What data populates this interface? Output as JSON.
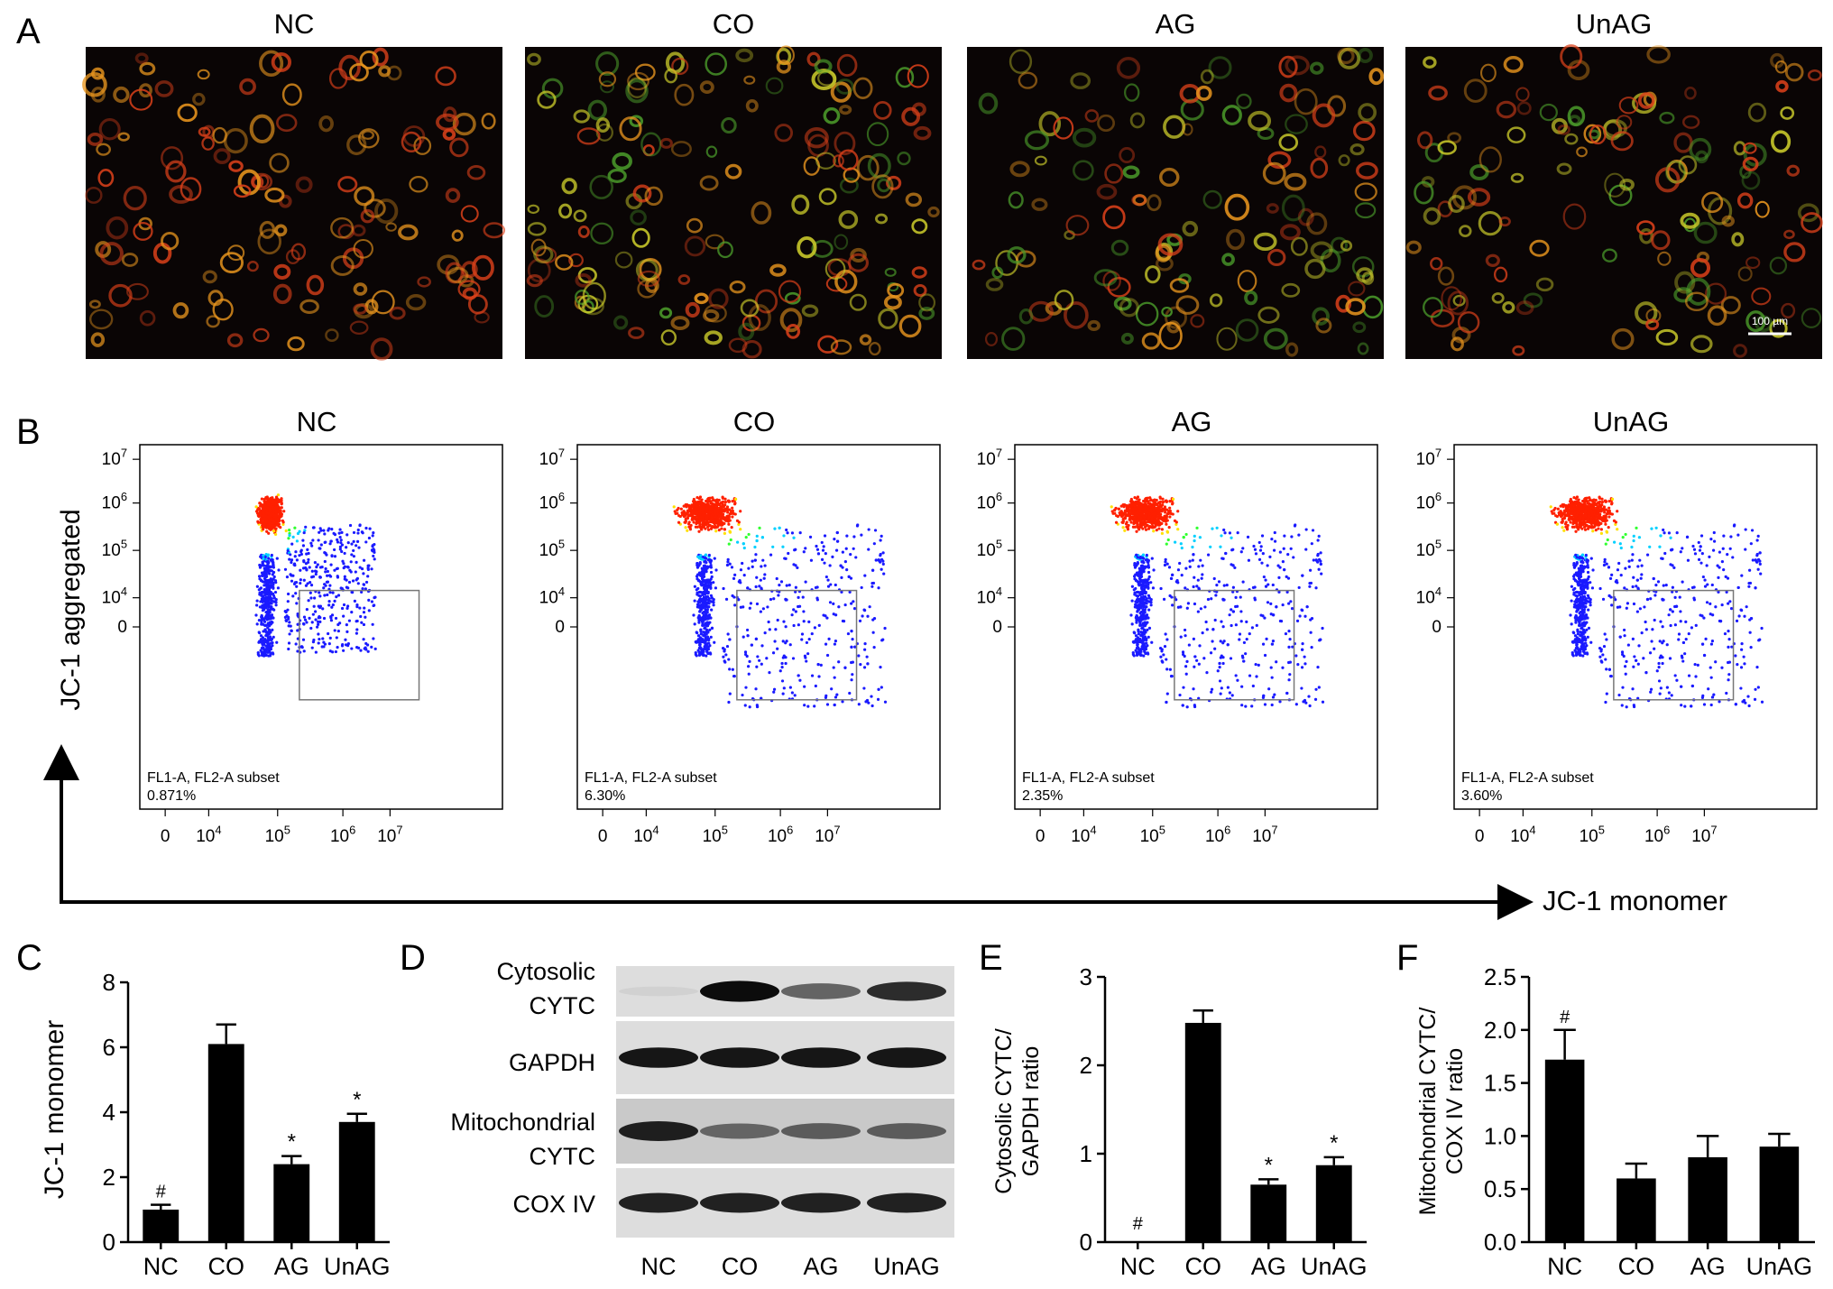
{
  "panel_letters": [
    "A",
    "B",
    "C",
    "D",
    "E",
    "F"
  ],
  "groups": [
    "NC",
    "CO",
    "AG",
    "UnAG"
  ],
  "panel_a": {
    "titles": [
      "NC",
      "CO",
      "AG",
      "UnAG"
    ],
    "scale_bar_label": "100 µm",
    "colors": {
      "background": "#0a0505",
      "red": "#d9401a",
      "orange": "#e8951e",
      "yellow": "#c8c82a",
      "green": "#4a9a2a"
    }
  },
  "panel_b": {
    "titles": [
      "NC",
      "CO",
      "AG",
      "UnAG"
    ],
    "y_axis_label": "JC-1 aggregated",
    "x_axis_label": "JC-1 monomer",
    "gate_label": "FL1-A, FL2-A subset",
    "gate_percent": [
      "0.871%",
      "6.30%",
      "2.35%",
      "3.60%"
    ],
    "x_ticks": [
      "0",
      "10^4",
      "10^5",
      "10^6",
      "10^7"
    ],
    "y_ticks": [
      "10^7",
      "10^6",
      "10^5",
      "10^4",
      "0"
    ],
    "colors": {
      "low": "#1a1aff",
      "mid": "#00d0ff",
      "hi": "#30ff30",
      "top": "#ffe000",
      "max": "#ff2000"
    }
  },
  "panel_d": {
    "rows": [
      {
        "label_lines": [
          "Cytosolic",
          "CYTC"
        ],
        "intensity": [
          0.05,
          0.95,
          0.55,
          0.8
        ]
      },
      {
        "label_lines": [
          "GAPDH"
        ],
        "intensity": [
          0.9,
          0.9,
          0.9,
          0.9
        ]
      },
      {
        "label_lines": [
          "Mitochondrial",
          "CYTC"
        ],
        "intensity": [
          0.85,
          0.5,
          0.55,
          0.55
        ]
      },
      {
        "label_lines": [
          "COX IV"
        ],
        "intensity": [
          0.85,
          0.85,
          0.85,
          0.85
        ]
      }
    ],
    "lanes": [
      "NC",
      "CO",
      "AG",
      "UnAG"
    ]
  },
  "chart_data": [
    {
      "panel": "C",
      "type": "bar",
      "categories": [
        "NC",
        "CO",
        "AG",
        "UnAG"
      ],
      "values": [
        1.0,
        6.1,
        2.4,
        3.7
      ],
      "errors": [
        0.15,
        0.6,
        0.25,
        0.25
      ],
      "annotations": [
        "#",
        "",
        "*",
        "*"
      ],
      "ylabel": "JC-1 monomer",
      "ylim": [
        0,
        8
      ],
      "yticks": [
        0,
        2,
        4,
        6,
        8
      ]
    },
    {
      "panel": "E",
      "type": "bar",
      "categories": [
        "NC",
        "CO",
        "AG",
        "UnAG"
      ],
      "values": [
        0.0,
        2.48,
        0.65,
        0.87
      ],
      "errors": [
        0.0,
        0.14,
        0.06,
        0.09
      ],
      "annotations": [
        "#",
        "",
        "*",
        "*"
      ],
      "ylabel_lines": [
        "Cytosolic CYTC/",
        "GAPDH ratio"
      ],
      "ylim": [
        0,
        3
      ],
      "yticks": [
        0,
        1,
        2,
        3
      ]
    },
    {
      "panel": "F",
      "type": "bar",
      "categories": [
        "NC",
        "CO",
        "AG",
        "UnAG"
      ],
      "values": [
        1.72,
        0.6,
        0.8,
        0.9
      ],
      "errors": [
        0.28,
        0.14,
        0.2,
        0.12
      ],
      "annotations": [
        "#",
        "",
        "",
        ""
      ],
      "ylabel_lines": [
        "Mitochondrial CYTC/",
        "COX IV ratio"
      ],
      "ylim": [
        0,
        2.5
      ],
      "yticks": [
        "0.0",
        "0.5",
        "1.0",
        "1.5",
        "2.0",
        "2.5"
      ]
    }
  ]
}
